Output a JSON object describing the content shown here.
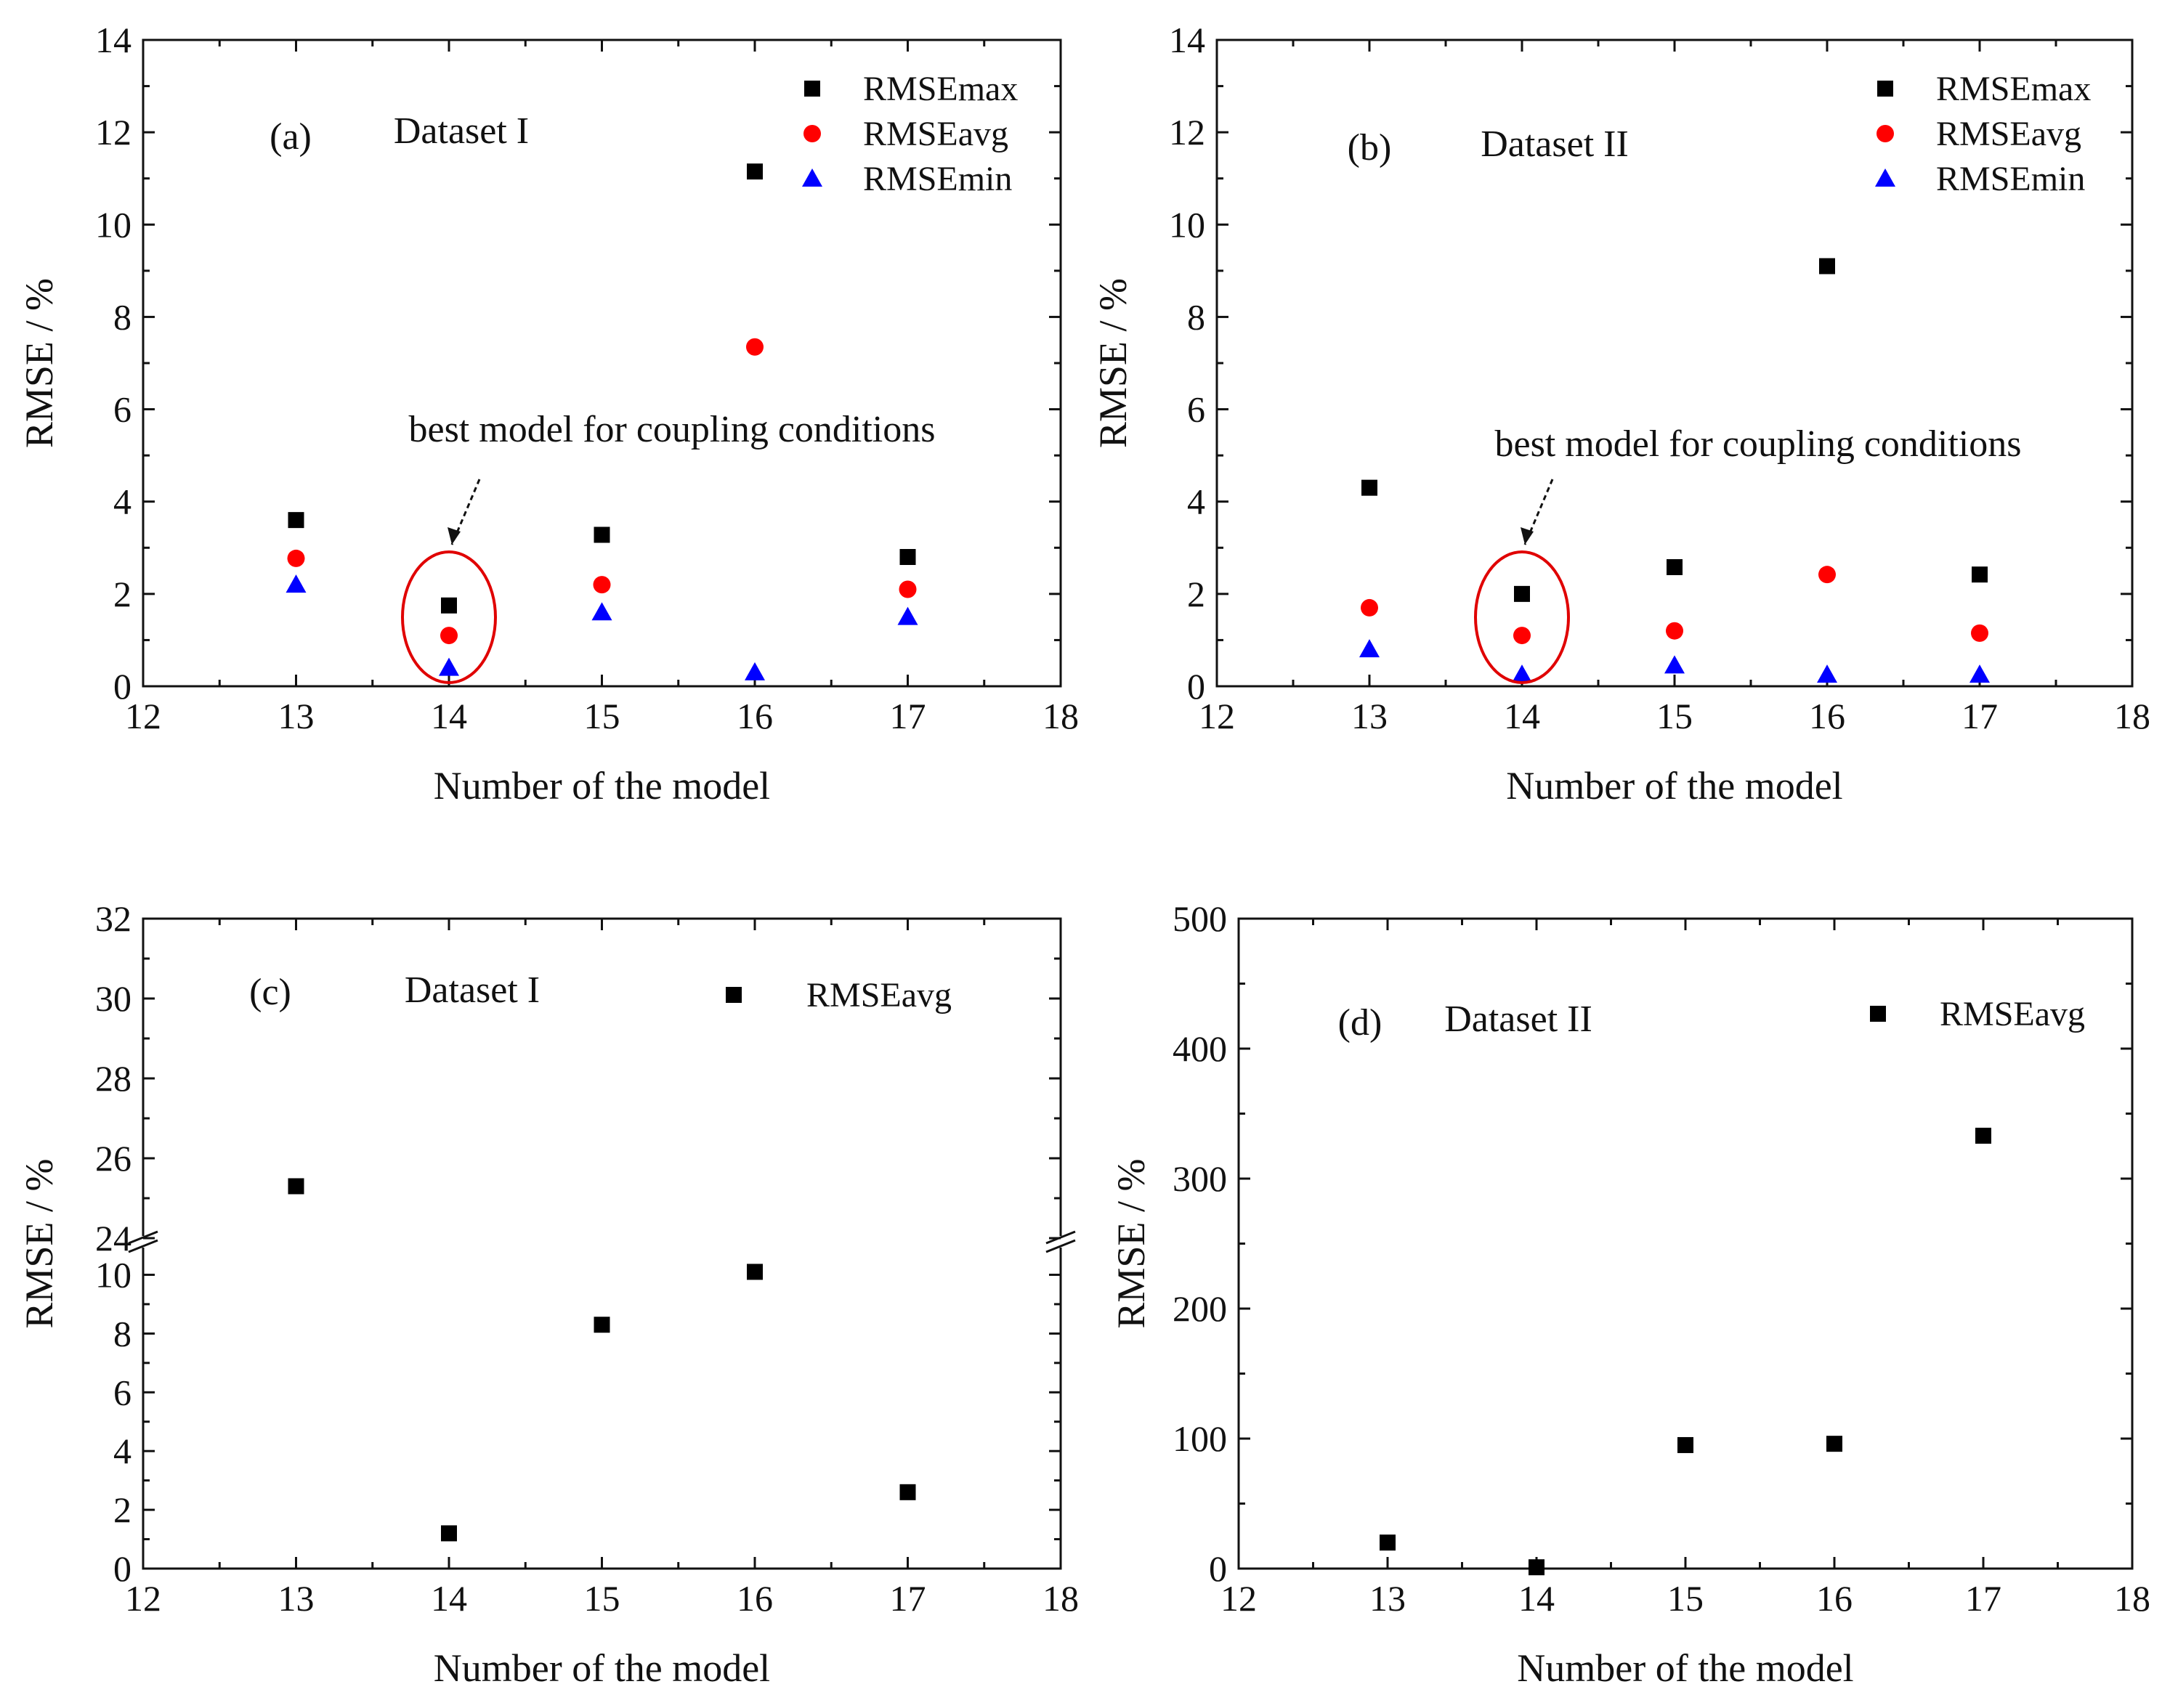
{
  "colors": {
    "max": "#000000",
    "avg": "#ff0000",
    "min": "#0000ff",
    "axis": "#111111",
    "annotation": "#e00000"
  },
  "chart_data": [
    {
      "panel_label": "(a)",
      "dataset": "Dataset I",
      "type": "scatter",
      "xlabel": "Number of the model",
      "ylabel": "RMSE / %",
      "xlim": [
        12,
        18
      ],
      "ylim": [
        0,
        14
      ],
      "xticks": [
        "12",
        "13",
        "14",
        "15",
        "16",
        "17",
        "18"
      ],
      "yticks": [
        "0",
        "2",
        "4",
        "6",
        "8",
        "10",
        "12",
        "14"
      ],
      "x": [
        13,
        14,
        15,
        16,
        17
      ],
      "series": [
        {
          "name": "RMSEmax",
          "marker": "square",
          "values": [
            3.6,
            1.75,
            3.28,
            11.15,
            2.8
          ]
        },
        {
          "name": "RMSEavg",
          "marker": "circle",
          "values": [
            2.77,
            1.1,
            2.2,
            7.35,
            2.1
          ]
        },
        {
          "name": "RMSEmin",
          "marker": "triangle",
          "values": [
            2.2,
            0.4,
            1.6,
            0.3,
            1.5
          ]
        }
      ],
      "annotation": "best model for coupling conditions",
      "highlight_x": 14
    },
    {
      "panel_label": "(b)",
      "dataset": "Dataset II",
      "type": "scatter",
      "xlabel": "Number of the model",
      "ylabel": "RMSE / %",
      "xlim": [
        12,
        18
      ],
      "ylim": [
        0,
        14
      ],
      "xticks": [
        "12",
        "13",
        "14",
        "15",
        "16",
        "17",
        "18"
      ],
      "yticks": [
        "0",
        "2",
        "4",
        "6",
        "8",
        "10",
        "12",
        "14"
      ],
      "x": [
        13,
        14,
        15,
        16,
        17
      ],
      "series": [
        {
          "name": "RMSEmax",
          "marker": "square",
          "values": [
            4.3,
            2.0,
            2.58,
            9.1,
            2.42
          ]
        },
        {
          "name": "RMSEavg",
          "marker": "circle",
          "values": [
            1.7,
            1.1,
            1.2,
            2.42,
            1.15
          ]
        },
        {
          "name": "RMSEmin",
          "marker": "triangle",
          "values": [
            0.8,
            0.25,
            0.45,
            0.25,
            0.25
          ]
        }
      ],
      "annotation": "best model for coupling conditions",
      "highlight_x": 14
    },
    {
      "panel_label": "(c)",
      "dataset": "Dataset I",
      "type": "scatter",
      "xlabel": "Number of the model",
      "ylabel": "RMSE / %",
      "xlim": [
        12,
        18
      ],
      "ylim_lower": [
        0,
        11
      ],
      "ylim_upper": [
        24,
        32
      ],
      "axis_break": true,
      "xticks": [
        "12",
        "13",
        "14",
        "15",
        "16",
        "17",
        "18"
      ],
      "yticks_lower": [
        "0",
        "2",
        "4",
        "6",
        "8",
        "10"
      ],
      "yticks_upper": [
        "24",
        "26",
        "28",
        "30",
        "32"
      ],
      "x": [
        13,
        14,
        15,
        16,
        17
      ],
      "series": [
        {
          "name": "RMSEavg",
          "marker": "square",
          "values": [
            25.3,
            1.2,
            8.3,
            10.1,
            2.6
          ]
        }
      ]
    },
    {
      "panel_label": "(d)",
      "dataset": "Dataset II",
      "type": "scatter",
      "xlabel": "Number of the model",
      "ylabel": "RMSE / %",
      "xlim": [
        12,
        18
      ],
      "ylim": [
        0,
        500
      ],
      "xticks": [
        "12",
        "13",
        "14",
        "15",
        "16",
        "17",
        "18"
      ],
      "yticks": [
        "0",
        "100",
        "200",
        "300",
        "400",
        "500"
      ],
      "x": [
        13,
        14,
        15,
        16,
        17
      ],
      "series": [
        {
          "name": "RMSEavg",
          "marker": "square",
          "values": [
            20,
            1,
            95,
            96,
            333
          ]
        }
      ]
    }
  ]
}
